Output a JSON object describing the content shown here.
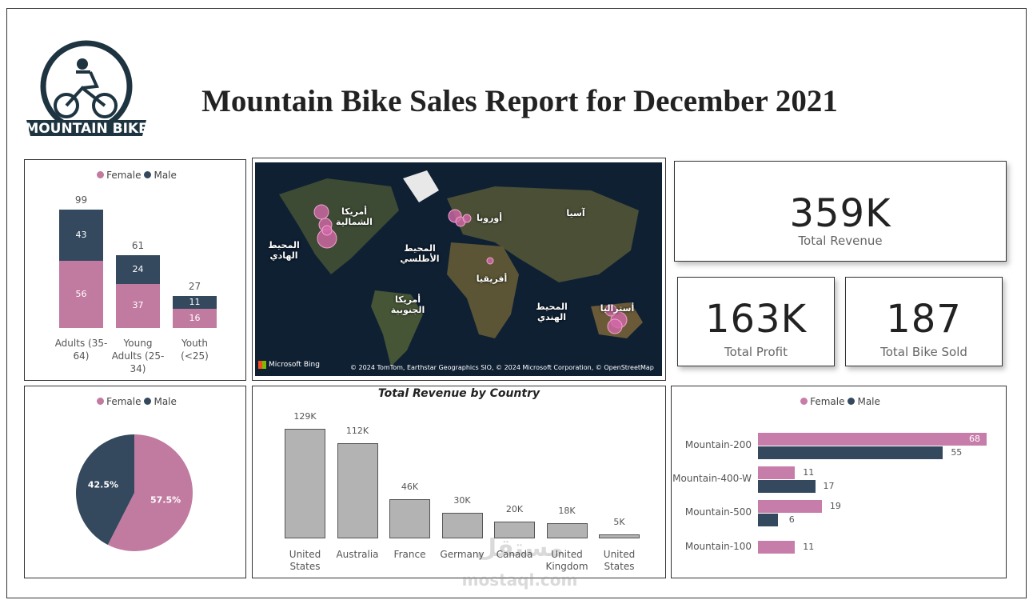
{
  "header": {
    "title": "Mountain Bike Sales Report for December 2021",
    "logo_text": "MOUNTAIN BIKE"
  },
  "kpis": [
    {
      "value": "359K",
      "label": "Total Revenue"
    },
    {
      "value": "163K",
      "label": "Total Profit"
    },
    {
      "value": "187",
      "label": "Total Bike Sold"
    }
  ],
  "map": {
    "labels": [
      "أمريكا الشمالية",
      "المحيط الهادي",
      "المحيط الأطلسي",
      "أوروبا",
      "آسيا",
      "أفريقيا",
      "أمريكا الجنوبية",
      "المحيط الهندي",
      "أستراليا"
    ],
    "attribution": "Microsoft Bing",
    "copyright": "© 2024 TomTom, Earthstar Geographics SIO, © 2024 Microsoft Corporation, © OpenStreetMap"
  },
  "watermark": {
    "arabic": "مستقل",
    "latin": "mostaql.com"
  },
  "chart_data": [
    {
      "type": "bar",
      "stacked": true,
      "legend": "top",
      "categories": [
        "Adults (35-64)",
        "Young Adults (25-34)",
        "Youth (<25)"
      ],
      "series": [
        {
          "name": "Female",
          "color": "#c27ba0",
          "values": [
            56,
            37,
            16
          ]
        },
        {
          "name": "Male",
          "color": "#34495e",
          "values": [
            43,
            24,
            11
          ]
        }
      ],
      "totals": [
        99,
        61,
        27
      ]
    },
    {
      "type": "pie",
      "legend": "top",
      "categories": [
        "Female",
        "Male"
      ],
      "values": [
        57.5,
        42.5
      ],
      "value_labels": [
        "57.5%",
        "42.5%"
      ],
      "colors": [
        "#c27ba0",
        "#34495e"
      ]
    },
    {
      "type": "bar",
      "title": "Total Revenue by Country",
      "categories": [
        "United States",
        "Australia",
        "France",
        "Germany",
        "Canada",
        "United Kingdom",
        "United States"
      ],
      "values": [
        129000,
        112000,
        46000,
        30000,
        20000,
        18000,
        5000
      ],
      "value_labels": [
        "129K",
        "112K",
        "46K",
        "30K",
        "20K",
        "18K",
        "5K"
      ],
      "color": "#b3b3b3"
    },
    {
      "type": "bar",
      "orientation": "horizontal",
      "legend": "top",
      "categories": [
        "Mountain-200",
        "Mountain-400-W",
        "Mountain-500",
        "Mountain-100"
      ],
      "series": [
        {
          "name": "Female",
          "color": "#c77daa",
          "values": [
            68,
            11,
            19,
            11
          ]
        },
        {
          "name": "Male",
          "color": "#34495e",
          "values": [
            55,
            17,
            6,
            null
          ]
        }
      ]
    }
  ]
}
